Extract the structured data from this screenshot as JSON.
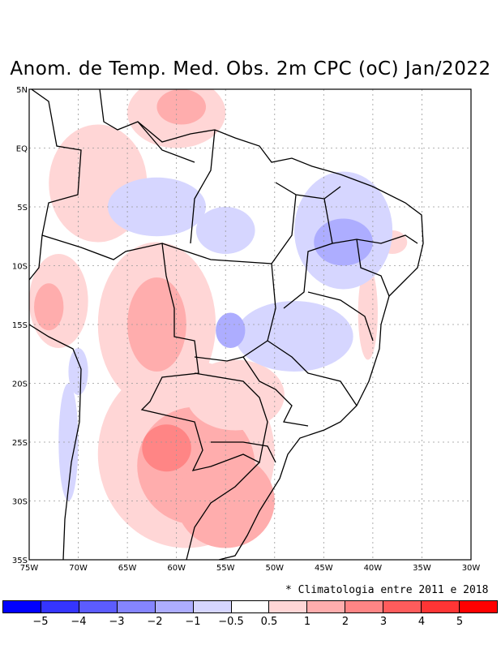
{
  "title": "Anom. de Temp. Med. Obs. 2m CPC (oC) Jan/2022",
  "note": "* Climatologia entre 2011 e 2018",
  "map": {
    "lat_labels": [
      "5N",
      "EQ",
      "5S",
      "10S",
      "15S",
      "20S",
      "25S",
      "30S",
      "35S"
    ],
    "lon_labels": [
      "75W",
      "70W",
      "65W",
      "60W",
      "55W",
      "50W",
      "45W",
      "40W",
      "35W",
      "30W"
    ],
    "lat_values": [
      5,
      0,
      -5,
      -10,
      -15,
      -20,
      -25,
      -30,
      -35
    ],
    "lon_values": [
      -75,
      -70,
      -65,
      -60,
      -55,
      -50,
      -45,
      -40,
      -35,
      -30
    ]
  },
  "colorbar": {
    "colors": [
      "#0000ff",
      "#3535ff",
      "#5c5cff",
      "#8585ff",
      "#adadff",
      "#d6d6ff",
      "#ffffff",
      "#ffd6d6",
      "#ffadad",
      "#ff8585",
      "#ff5c5c",
      "#ff3535",
      "#ff0000"
    ],
    "labels": [
      "−5",
      "−4",
      "−3",
      "−2",
      "−1",
      "−0.5",
      "0.5",
      "1",
      "2",
      "3",
      "4",
      "5"
    ]
  },
  "anomalies": [
    {
      "name": "south-warm-broad",
      "lon": -59,
      "lat": -26,
      "rx": 9,
      "ry": 8,
      "level": 1
    },
    {
      "name": "south-warm-core",
      "lon": -58,
      "lat": -27,
      "rx": 6,
      "ry": 5,
      "level": 2
    },
    {
      "name": "rs-warm-core",
      "lon": -55.5,
      "lat": -31.5,
      "rx": 2.5,
      "ry": 2,
      "level": 3
    },
    {
      "name": "rs-warm-outer",
      "lon": -55,
      "lat": -30,
      "rx": 5,
      "ry": 4,
      "level": 2
    },
    {
      "name": "paraguay-warm-core",
      "lon": -61,
      "lat": -25.5,
      "rx": 2.5,
      "ry": 2,
      "level": 3
    },
    {
      "name": "bolivia-warm",
      "lon": -62,
      "lat": -15,
      "rx": 6,
      "ry": 7,
      "level": 1
    },
    {
      "name": "bolivia-warm-inner",
      "lon": -62,
      "lat": -15,
      "rx": 3,
      "ry": 4,
      "level": 2
    },
    {
      "name": "ms-warm",
      "lon": -54,
      "lat": -21,
      "rx": 5,
      "ry": 3,
      "level": 1
    },
    {
      "name": "peru-warm",
      "lon": -72,
      "lat": -13,
      "rx": 3,
      "ry": 4,
      "level": 1
    },
    {
      "name": "peru-warm-core",
      "lon": -73,
      "lat": -13.5,
      "rx": 1.5,
      "ry": 2,
      "level": 2
    },
    {
      "name": "north-warm",
      "lon": -60,
      "lat": 3,
      "rx": 5,
      "ry": 3,
      "level": 1
    },
    {
      "name": "north-warm-inner",
      "lon": -59.5,
      "lat": 3.5,
      "rx": 2.5,
      "ry": 1.5,
      "level": 2
    },
    {
      "name": "colombia-warm",
      "lon": -68,
      "lat": -3,
      "rx": 5,
      "ry": 5,
      "level": 1
    },
    {
      "name": "coast-warm",
      "lon": -40.5,
      "lat": -14,
      "rx": 1,
      "ry": 4,
      "level": 1
    },
    {
      "name": "ne-warm",
      "lon": -38,
      "lat": -8,
      "rx": 1.5,
      "ry": 1,
      "level": 1
    },
    {
      "name": "ne-cool",
      "lon": -43,
      "lat": -7,
      "rx": 5,
      "ry": 5,
      "level": -1
    },
    {
      "name": "ne-cool-inner",
      "lon": -43,
      "lat": -8,
      "rx": 3,
      "ry": 2,
      "level": -2
    },
    {
      "name": "mg-cool",
      "lon": -48,
      "lat": -16,
      "rx": 6,
      "ry": 3,
      "level": -1
    },
    {
      "name": "go-cool-core",
      "lon": -54.5,
      "lat": -15.5,
      "rx": 1.5,
      "ry": 1.5,
      "level": -2
    },
    {
      "name": "amazon-cool",
      "lon": -62,
      "lat": -5,
      "rx": 5,
      "ry": 2.5,
      "level": -1
    },
    {
      "name": "amazon-cool-2",
      "lon": -55,
      "lat": -7,
      "rx": 3,
      "ry": 2,
      "level": -1
    },
    {
      "name": "chile-cool",
      "lon": -71,
      "lat": -25,
      "rx": 1,
      "ry": 5,
      "level": -1
    },
    {
      "name": "andes-cool",
      "lon": -70,
      "lat": -19,
      "rx": 1,
      "ry": 2,
      "level": -1
    }
  ]
}
